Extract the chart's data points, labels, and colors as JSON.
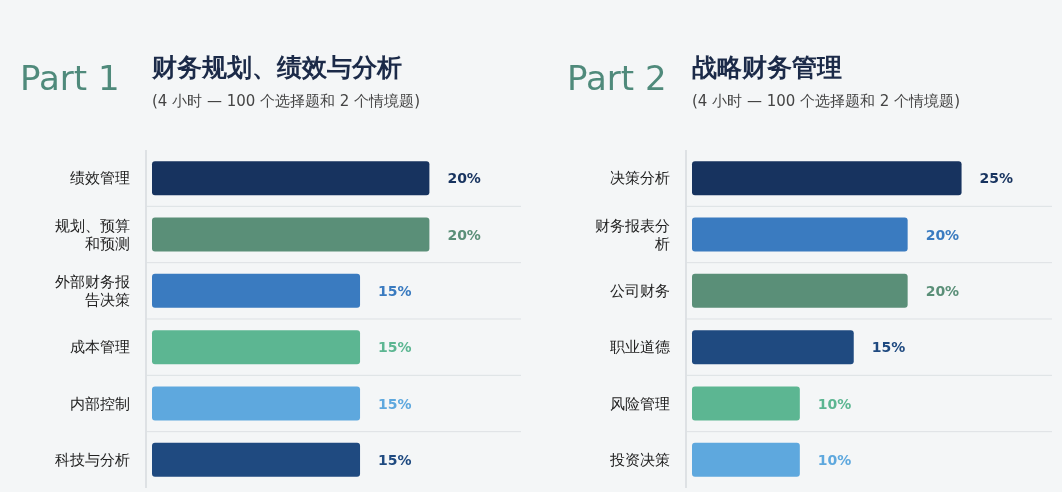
{
  "chart_data": [
    {
      "type": "bar",
      "orientation": "horizontal",
      "title": "财务规划、绩效与分析",
      "subtitle": "(4 小时 — 100 个选择题和 2 个情境题)",
      "annotations": [
        "Part 1"
      ],
      "categories": [
        "绩效管理",
        "规划、预算和预测",
        "外部财务报告决策",
        "成本管理",
        "内部控制",
        "科技与分析"
      ],
      "values": [
        20,
        20,
        15,
        15,
        15,
        15
      ],
      "value_labels": [
        "20%",
        "20%",
        "15%",
        "15%",
        "15%",
        "15%"
      ],
      "colors": [
        "#17335f",
        "#5a8f78",
        "#3a7bc0",
        "#5cb692",
        "#5ea8de",
        "#1f4a80"
      ]
    },
    {
      "type": "bar",
      "orientation": "horizontal",
      "title": "战略财务管理",
      "subtitle": "(4 小时 — 100 个选择题和 2 个情境题)",
      "annotations": [
        "Part 2"
      ],
      "categories": [
        "决策分析",
        "财务报表分析",
        "公司财务",
        "职业道德",
        "风险管理",
        "投资决策"
      ],
      "values": [
        25,
        20,
        20,
        15,
        10,
        10
      ],
      "value_labels": [
        "25%",
        "20%",
        "20%",
        "15%",
        "10%",
        "10%"
      ],
      "colors": [
        "#17335f",
        "#3a7bc0",
        "#5a8f78",
        "#1f4a80",
        "#5cb692",
        "#5ea8de"
      ]
    }
  ]
}
